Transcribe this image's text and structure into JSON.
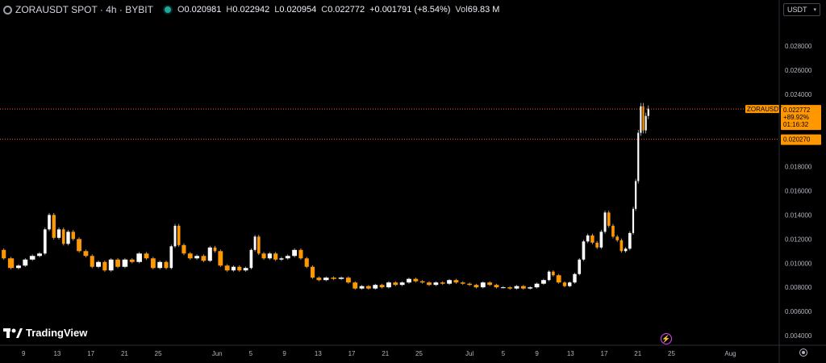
{
  "header": {
    "title": "ZORAUSDT SPOT · 4h · BYBIT",
    "ohlc": [
      {
        "k": "O",
        "v": "0.020981"
      },
      {
        "k": "H",
        "v": "0.022942"
      },
      {
        "k": "L",
        "v": "0.020954"
      },
      {
        "k": "C",
        "v": "0.022772"
      },
      {
        "k": "",
        "v": "+0.001791 (+8.54%)"
      },
      {
        "k": "Vol",
        "v": "69.83 M"
      }
    ]
  },
  "unit_select": {
    "label": "USDT"
  },
  "logo": {
    "text": "TradingView"
  },
  "colors": {
    "bg": "#000000",
    "up": "#ffffff",
    "down": "#ff9800",
    "wick": "#bdbdbd",
    "line": "#ff9800",
    "axis_text": "#b2b5be"
  },
  "icons": [
    "symbol-icon",
    "status-dot-icon",
    "chevron-down-icon",
    "flash-icon",
    "settings-icon",
    "tradingview-logo-icon"
  ],
  "chart_data": {
    "type": "line",
    "y_axis_position": "right",
    "ylim": [
      0.0032,
      0.0302
    ],
    "y_ticks": [
      "0.004000",
      "0.006000",
      "0.008000",
      "0.010000",
      "0.012000",
      "0.014000",
      "0.016000",
      "0.018000",
      "0.020000",
      "0.022000",
      "0.024000",
      "0.026000",
      "0.028000"
    ],
    "x_ticks": [
      {
        "label": "9",
        "day": 9
      },
      {
        "label": "13",
        "day": 13
      },
      {
        "label": "17",
        "day": 17
      },
      {
        "label": "21",
        "day": 21
      },
      {
        "label": "25",
        "day": 25
      },
      {
        "label": "Jun",
        "day": 32
      },
      {
        "label": "5",
        "day": 36
      },
      {
        "label": "9",
        "day": 40
      },
      {
        "label": "13",
        "day": 44
      },
      {
        "label": "17",
        "day": 48
      },
      {
        "label": "21",
        "day": 52
      },
      {
        "label": "25",
        "day": 56
      },
      {
        "label": "Jul",
        "day": 62
      },
      {
        "label": "5",
        "day": 66
      },
      {
        "label": "9",
        "day": 70
      },
      {
        "label": "13",
        "day": 74
      },
      {
        "label": "17",
        "day": 78
      },
      {
        "label": "21",
        "day": 82
      },
      {
        "label": "25",
        "day": 86
      },
      {
        "label": "Aug",
        "day": 93
      }
    ],
    "xlim": [
      6.2,
      98.8
    ],
    "series": [
      {
        "points": [
          [
            6.3,
            0.0111
          ],
          [
            7.0,
            0.0104
          ],
          [
            8.0,
            0.0096
          ],
          [
            8.8,
            0.0098
          ],
          [
            9.6,
            0.0103
          ],
          [
            10.5,
            0.0106
          ],
          [
            11.3,
            0.0108
          ],
          [
            11.8,
            0.0128
          ],
          [
            12.3,
            0.014
          ],
          [
            12.9,
            0.0121
          ],
          [
            13.5,
            0.0128
          ],
          [
            14.0,
            0.0116
          ],
          [
            14.6,
            0.0126
          ],
          [
            15.2,
            0.012
          ],
          [
            16.0,
            0.011
          ],
          [
            16.8,
            0.0106
          ],
          [
            17.5,
            0.0097
          ],
          [
            18.3,
            0.0101
          ],
          [
            19.0,
            0.0094
          ],
          [
            19.8,
            0.0103
          ],
          [
            20.6,
            0.0097
          ],
          [
            21.5,
            0.0103
          ],
          [
            22.3,
            0.0101
          ],
          [
            23.2,
            0.0108
          ],
          [
            24.0,
            0.0104
          ],
          [
            24.8,
            0.0096
          ],
          [
            25.6,
            0.0101
          ],
          [
            26.3,
            0.0096
          ],
          [
            26.8,
            0.0114
          ],
          [
            27.2,
            0.0131
          ],
          [
            27.7,
            0.0115
          ],
          [
            28.4,
            0.0108
          ],
          [
            29.2,
            0.0104
          ],
          [
            30.0,
            0.0106
          ],
          [
            30.8,
            0.0102
          ],
          [
            31.5,
            0.0113
          ],
          [
            32.0,
            0.011
          ],
          [
            32.8,
            0.0098
          ],
          [
            33.6,
            0.0094
          ],
          [
            34.3,
            0.0097
          ],
          [
            35.0,
            0.0094
          ],
          [
            35.8,
            0.0096
          ],
          [
            36.3,
            0.0111
          ],
          [
            36.7,
            0.0122
          ],
          [
            37.2,
            0.0108
          ],
          [
            37.9,
            0.0104
          ],
          [
            38.6,
            0.0108
          ],
          [
            39.3,
            0.0103
          ],
          [
            40.0,
            0.0104
          ],
          [
            40.8,
            0.0106
          ],
          [
            41.6,
            0.0111
          ],
          [
            42.3,
            0.0104
          ],
          [
            43.0,
            0.0097
          ],
          [
            43.7,
            0.0088
          ],
          [
            44.5,
            0.0086
          ],
          [
            45.4,
            0.0088
          ],
          [
            46.3,
            0.0087
          ],
          [
            47.2,
            0.0088
          ],
          [
            48.0,
            0.0084
          ],
          [
            48.8,
            0.0079
          ],
          [
            49.6,
            0.0081
          ],
          [
            50.4,
            0.0079
          ],
          [
            51.2,
            0.0082
          ],
          [
            52.0,
            0.008
          ],
          [
            52.8,
            0.0084
          ],
          [
            53.6,
            0.0082
          ],
          [
            54.4,
            0.0084
          ],
          [
            55.2,
            0.0087
          ],
          [
            56.0,
            0.0085
          ],
          [
            56.8,
            0.0084
          ],
          [
            57.6,
            0.0082
          ],
          [
            58.4,
            0.0084
          ],
          [
            59.2,
            0.0083
          ],
          [
            60.0,
            0.0086
          ],
          [
            60.8,
            0.0084
          ],
          [
            61.6,
            0.0083
          ],
          [
            62.4,
            0.0082
          ],
          [
            63.2,
            0.008
          ],
          [
            64.0,
            0.0084
          ],
          [
            64.8,
            0.0082
          ],
          [
            65.6,
            0.008
          ],
          [
            66.4,
            0.008
          ],
          [
            67.2,
            0.0079
          ],
          [
            68.0,
            0.0081
          ],
          [
            68.8,
            0.0079
          ],
          [
            69.6,
            0.008
          ],
          [
            70.4,
            0.0083
          ],
          [
            71.2,
            0.0086
          ],
          [
            71.7,
            0.0093
          ],
          [
            72.2,
            0.009
          ],
          [
            73.0,
            0.0084
          ],
          [
            73.6,
            0.0081
          ],
          [
            74.2,
            0.0084
          ],
          [
            74.8,
            0.0091
          ],
          [
            75.3,
            0.0103
          ],
          [
            75.8,
            0.0118
          ],
          [
            76.3,
            0.0123
          ],
          [
            76.9,
            0.0117
          ],
          [
            77.4,
            0.0113
          ],
          [
            77.9,
            0.0126
          ],
          [
            78.3,
            0.0142
          ],
          [
            78.8,
            0.0131
          ],
          [
            79.3,
            0.0122
          ],
          [
            79.8,
            0.0119
          ],
          [
            80.3,
            0.011
          ],
          [
            80.8,
            0.0112
          ],
          [
            81.3,
            0.0125
          ],
          [
            81.6,
            0.0145
          ],
          [
            81.9,
            0.0168
          ],
          [
            82.2,
            0.0208
          ],
          [
            82.5,
            0.023
          ],
          [
            82.8,
            0.021
          ],
          [
            83.1,
            0.0222
          ],
          [
            83.4,
            0.0228
          ]
        ]
      }
    ],
    "price_lines": [
      {
        "label": "ZORAUSDT",
        "value": 0.022772,
        "lines": [
          "0.022772",
          "+89.92%",
          "01:16:32"
        ]
      },
      {
        "label": "",
        "value": 0.02027,
        "lines": [
          "0.020270"
        ]
      }
    ]
  }
}
